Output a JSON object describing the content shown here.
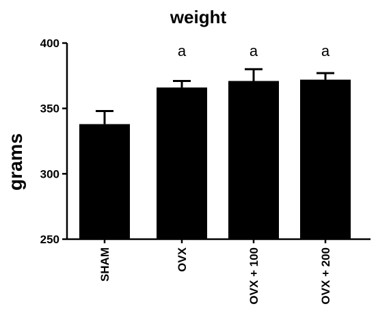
{
  "chart_data": {
    "type": "bar",
    "title": "weight",
    "xlabel": "",
    "ylabel": "grams",
    "ylim": [
      250,
      400
    ],
    "yticks": [
      250,
      300,
      350,
      400
    ],
    "categories": [
      "SHAM",
      "OVX",
      "OVX + 100",
      "OVX + 200"
    ],
    "values": [
      338,
      366,
      371,
      372
    ],
    "errors": [
      10,
      5,
      9,
      5
    ],
    "annotations": [
      "",
      "a",
      "a",
      "a"
    ],
    "bar_color": "#000000",
    "grid": false,
    "legend": "none"
  }
}
